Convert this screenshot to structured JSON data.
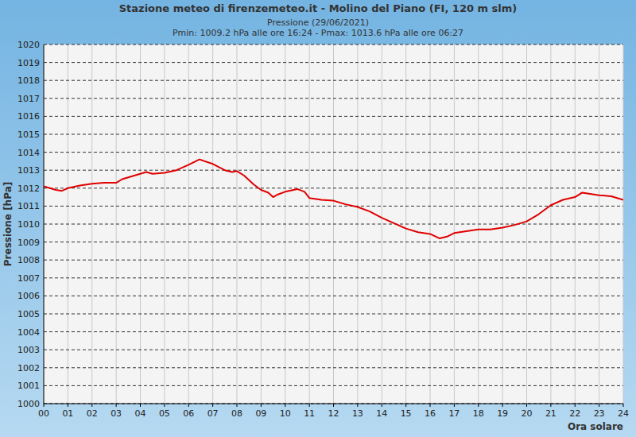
{
  "chart_data": {
    "type": "line",
    "title": "Stazione meteo di firenzemeteo.it - Molino del Piano (FI, 120 m slm)",
    "subtitle": "Pressione (29/06/2021)",
    "annotations": [
      "Pmin: 1009.2 hPa alle ore 16:24 - Pmax: 1013.6 hPa alle ore 06:27"
    ],
    "x_label": "Ora solare",
    "y_label": "Pressione [hPa]",
    "x": [
      0,
      0.25,
      0.5,
      0.75,
      1,
      1.5,
      2,
      2.5,
      3,
      3.25,
      3.5,
      4,
      4.25,
      4.5,
      5,
      5.5,
      6,
      6.45,
      7,
      7.5,
      7.8,
      8,
      8.3,
      8.7,
      9,
      9.3,
      9.5,
      9.7,
      10,
      10.5,
      10.8,
      11,
      11.5,
      12,
      12.5,
      13,
      13.5,
      14,
      14.5,
      15,
      15.5,
      16,
      16.4,
      16.7,
      17,
      17.5,
      18,
      18.5,
      19,
      19.5,
      20,
      20.5,
      21,
      21.5,
      22,
      22.3,
      23,
      23.5,
      24
    ],
    "series": [
      {
        "color": "#e00000",
        "line_style": "solid",
        "values": [
          1012.1,
          1012.0,
          1011.9,
          1011.85,
          1012.0,
          1012.15,
          1012.25,
          1012.3,
          1012.3,
          1012.5,
          1012.6,
          1012.8,
          1012.9,
          1012.8,
          1012.85,
          1013.0,
          1013.3,
          1013.6,
          1013.35,
          1013.0,
          1012.9,
          1012.95,
          1012.7,
          1012.2,
          1011.9,
          1011.75,
          1011.5,
          1011.65,
          1011.8,
          1011.95,
          1011.8,
          1011.45,
          1011.35,
          1011.3,
          1011.1,
          1010.95,
          1010.7,
          1010.35,
          1010.05,
          1009.75,
          1009.55,
          1009.45,
          1009.2,
          1009.3,
          1009.5,
          1009.6,
          1009.7,
          1009.7,
          1009.8,
          1009.95,
          1010.15,
          1010.55,
          1011.05,
          1011.35,
          1011.5,
          1011.75,
          1011.6,
          1011.55,
          1011.35
        ]
      }
    ],
    "xlim": [
      0,
      24
    ],
    "ylim": [
      1000,
      1020
    ],
    "xticks": [
      {
        "value": 0,
        "label": "00"
      },
      {
        "value": 1,
        "label": "01"
      },
      {
        "value": 2,
        "label": "02"
      },
      {
        "value": 3,
        "label": "03"
      },
      {
        "value": 4,
        "label": "04"
      },
      {
        "value": 5,
        "label": "05"
      },
      {
        "value": 6,
        "label": "06"
      },
      {
        "value": 7,
        "label": "07"
      },
      {
        "value": 8,
        "label": "08"
      },
      {
        "value": 9,
        "label": "09"
      },
      10,
      11,
      12,
      13,
      14,
      15,
      16,
      17,
      18,
      19,
      20,
      21,
      22,
      23,
      24
    ],
    "yticks": [
      1000,
      1001,
      1002,
      1003,
      1004,
      1005,
      1006,
      1007,
      1008,
      1009,
      1010,
      1011,
      1012,
      1013,
      1014,
      1015,
      1016,
      1017,
      1018,
      1019,
      1020
    ],
    "grid": true
  }
}
